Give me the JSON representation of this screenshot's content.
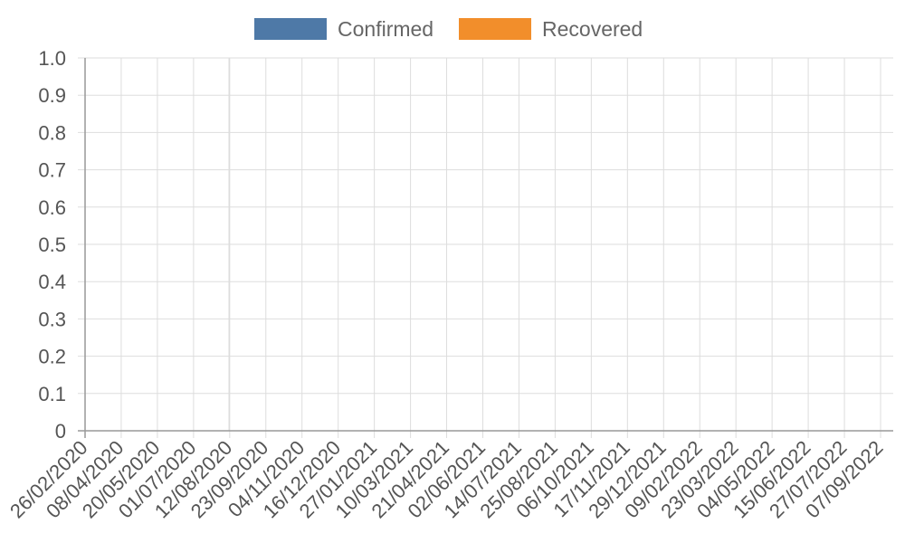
{
  "chart_data": {
    "type": "bar",
    "title": "",
    "xlabel": "",
    "ylabel": "",
    "ylim": [
      0,
      1
    ],
    "y_ticks": [
      "0",
      "0.1",
      "0.2",
      "0.3",
      "0.4",
      "0.5",
      "0.6",
      "0.7",
      "0.8",
      "0.9",
      "1.0"
    ],
    "x_ticks": [
      "26/02/2020",
      "08/04/2020",
      "20/05/2020",
      "01/07/2020",
      "12/08/2020",
      "23/09/2020",
      "04/11/2020",
      "16/12/2020",
      "27/01/2021",
      "10/03/2021",
      "21/04/2021",
      "02/06/2021",
      "14/07/2021",
      "25/08/2021",
      "06/10/2021",
      "17/11/2021",
      "29/12/2021",
      "09/02/2022",
      "23/03/2022",
      "04/05/2022",
      "15/06/2022",
      "27/07/2022",
      "07/09/2022"
    ],
    "grid": true,
    "legend_position": "top-center",
    "series": [
      {
        "name": "Confirmed",
        "color": "#4e79a7",
        "values": []
      },
      {
        "name": "Recovered",
        "color": "#f28e2b",
        "values": []
      }
    ]
  }
}
